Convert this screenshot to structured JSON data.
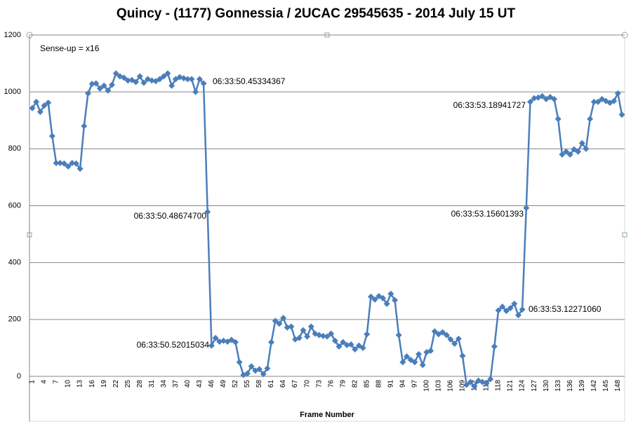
{
  "chart_data": {
    "type": "line",
    "title": "Quincy - (1177) Gonnessia / 2UCAC 29545635 - 2014 July 15 UT",
    "x_label": "Frame Number",
    "note": "Sense-up = x16",
    "annotations": [
      "06:33:50.45334367",
      "06:33:50.48674700",
      "06:33:50.52015034",
      "06:33:53.18941727",
      "06:33:53.15601393",
      "06:33:53.12271060"
    ],
    "categories": [
      1,
      null,
      null,
      4,
      null,
      null,
      7,
      null,
      null,
      10,
      null,
      null,
      13,
      null,
      null,
      16,
      null,
      null,
      19,
      null,
      null,
      22,
      null,
      null,
      25,
      null,
      null,
      28,
      null,
      null,
      31,
      null,
      null,
      34,
      null,
      null,
      37,
      null,
      null,
      40,
      null,
      null,
      43,
      null,
      null,
      46,
      null,
      null,
      49,
      null,
      null,
      52,
      null,
      null,
      55,
      null,
      null,
      58,
      null,
      null,
      61,
      null,
      null,
      64,
      null,
      null,
      67,
      null,
      null,
      70,
      null,
      null,
      73,
      null,
      null,
      76,
      null,
      null,
      79,
      null,
      null,
      82,
      null,
      null,
      85,
      null,
      null,
      88,
      null,
      null,
      91,
      null,
      null,
      94,
      null,
      null,
      97,
      null,
      null,
      100,
      null,
      null,
      103,
      null,
      null,
      106,
      null,
      null,
      109,
      null,
      null,
      112,
      null,
      null,
      115,
      null,
      null,
      118,
      null,
      null,
      121,
      null,
      null,
      124,
      null,
      null,
      127,
      null,
      null,
      130,
      null,
      null,
      133,
      null,
      null,
      136,
      null,
      null,
      139,
      null,
      null,
      142,
      null,
      null,
      145,
      null,
      null,
      148,
      null
    ],
    "values": [
      943,
      965,
      930,
      952,
      962,
      845,
      750,
      750,
      748,
      738,
      750,
      748,
      730,
      880,
      995,
      1028,
      1030,
      1012,
      1022,
      1005,
      1025,
      1065,
      1055,
      1050,
      1040,
      1042,
      1035,
      1055,
      1032,
      1045,
      1040,
      1038,
      1045,
      1055,
      1065,
      1022,
      1045,
      1052,
      1048,
      1045,
      1045,
      1000,
      1045,
      1030,
      578,
      108,
      135,
      122,
      125,
      122,
      128,
      120,
      50,
      5,
      10,
      35,
      20,
      25,
      8,
      28,
      120,
      195,
      185,
      205,
      172,
      175,
      130,
      135,
      162,
      140,
      175,
      150,
      145,
      142,
      140,
      150,
      125,
      105,
      120,
      110,
      112,
      95,
      108,
      100,
      148,
      280,
      270,
      282,
      275,
      255,
      290,
      268,
      145,
      50,
      70,
      58,
      50,
      78,
      40,
      85,
      90,
      158,
      148,
      155,
      145,
      130,
      115,
      132,
      72,
      -30,
      -20,
      -35,
      -15,
      -20,
      -25,
      -10,
      105,
      232,
      245,
      230,
      240,
      255,
      215,
      235,
      592,
      965,
      978,
      980,
      985,
      975,
      982,
      975,
      905,
      780,
      790,
      780,
      798,
      790,
      820,
      800,
      905,
      965,
      965,
      975,
      968,
      962,
      968,
      995,
      920
    ],
    "color": "#4a7ebb",
    "ylim": [
      0,
      1200
    ],
    "yticks": [
      0,
      200,
      400,
      600,
      800,
      1000,
      1200
    ],
    "grid": true
  }
}
